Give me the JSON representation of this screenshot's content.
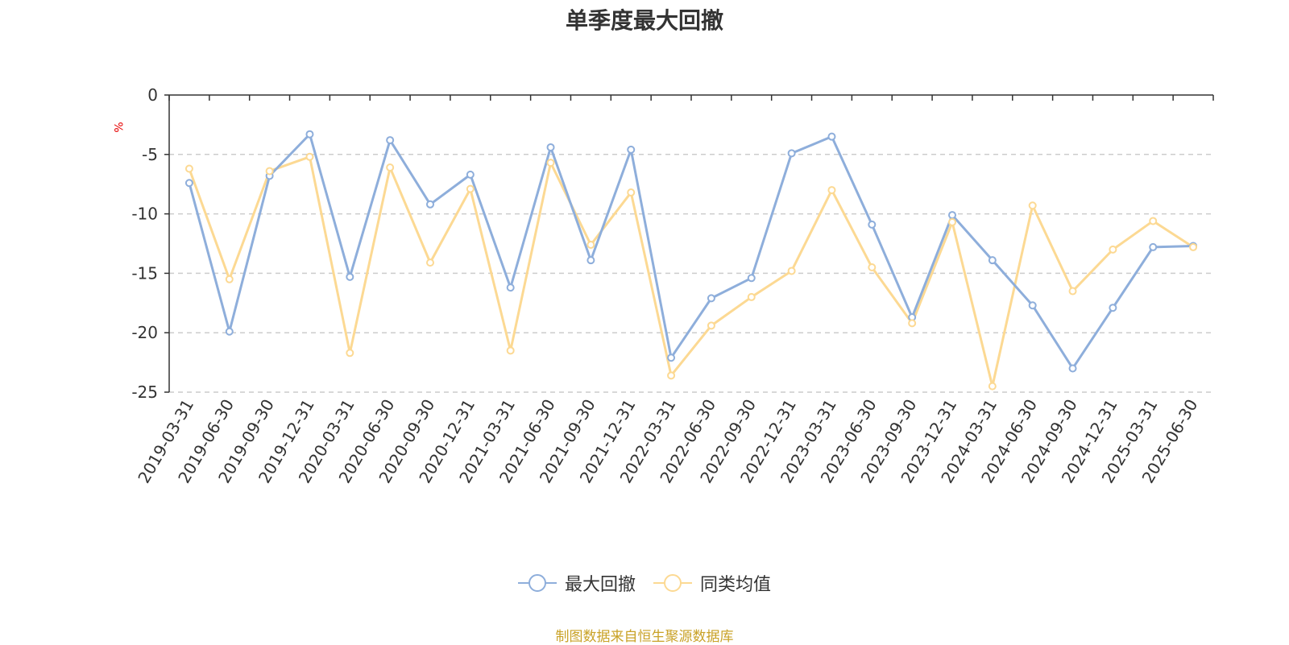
{
  "title": "单季度最大回撤",
  "source_note": "制图数据来自恒生聚源数据库",
  "colors": {
    "series1": "#8eaedb",
    "series2": "#fcd993",
    "unit": "#e60000",
    "source": "#c9a227"
  },
  "chart_data": {
    "type": "line",
    "title": "单季度最大回撤",
    "ylabel": "%",
    "ylim": [
      -25,
      0
    ],
    "yticks": [
      0,
      -5,
      -10,
      -15,
      -20,
      -25
    ],
    "grid": true,
    "legend_position": "bottom",
    "x": [
      "2019-03-31",
      "2019-06-30",
      "2019-09-30",
      "2019-12-31",
      "2020-03-31",
      "2020-06-30",
      "2020-09-30",
      "2020-12-31",
      "2021-03-31",
      "2021-06-30",
      "2021-09-30",
      "2021-12-31",
      "2022-03-31",
      "2022-06-30",
      "2022-09-30",
      "2022-12-31",
      "2023-03-31",
      "2023-06-30",
      "2023-09-30",
      "2023-12-31",
      "2024-03-31",
      "2024-06-30",
      "2024-09-30",
      "2024-12-31",
      "2025-03-31",
      "2025-06-30"
    ],
    "series": [
      {
        "name": "最大回撤",
        "values": [
          -7.4,
          -19.9,
          -6.8,
          -3.3,
          -15.3,
          -3.8,
          -9.2,
          -6.7,
          -16.2,
          -4.4,
          -13.9,
          -4.6,
          -22.1,
          -17.1,
          -15.4,
          -4.9,
          -3.5,
          -10.9,
          -18.7,
          -10.1,
          -13.9,
          -17.7,
          -23.0,
          -17.9,
          -12.8,
          -12.7
        ]
      },
      {
        "name": "同类均值",
        "values": [
          -6.2,
          -15.5,
          -6.4,
          -5.2,
          -21.7,
          -6.1,
          -14.1,
          -7.9,
          -21.5,
          -5.7,
          -12.6,
          -8.2,
          -23.6,
          -19.4,
          -17.0,
          -14.8,
          -8.0,
          -14.5,
          -19.2,
          -10.7,
          -24.5,
          -9.3,
          -16.5,
          -13.0,
          -10.6,
          -12.8
        ]
      }
    ]
  }
}
